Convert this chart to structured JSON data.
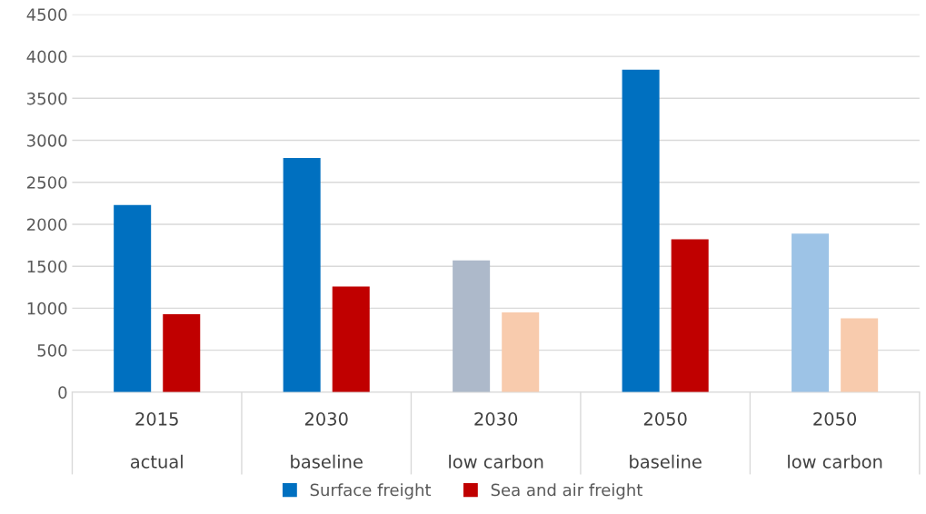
{
  "chart_data": {
    "type": "bar",
    "categories": [
      "2015\nactual",
      "2030\nbaseline",
      "2030\nlow carbon",
      "2050\nbaseline",
      "2050\nlow carbon"
    ],
    "series": [
      {
        "name": "Surface freight",
        "color": "#0070c0",
        "colors": [
          "#0070c0",
          "#0070c0",
          "#adb9ca",
          "#0070c0",
          "#9dc3e6"
        ],
        "values": [
          2230,
          2790,
          1570,
          3840,
          1890
        ]
      },
      {
        "name": "Sea and air freight",
        "color": "#c00000",
        "colors": [
          "#c00000",
          "#c00000",
          "#f8cbad",
          "#c00000",
          "#f8cbad"
        ],
        "values": [
          930,
          1260,
          950,
          1820,
          880
        ]
      }
    ],
    "ylim": [
      0,
      4500
    ],
    "yticks": [
      0,
      500,
      1000,
      1500,
      2000,
      2500,
      3000,
      3500,
      4000,
      4500
    ],
    "grid": "y",
    "legend": "bottom"
  }
}
